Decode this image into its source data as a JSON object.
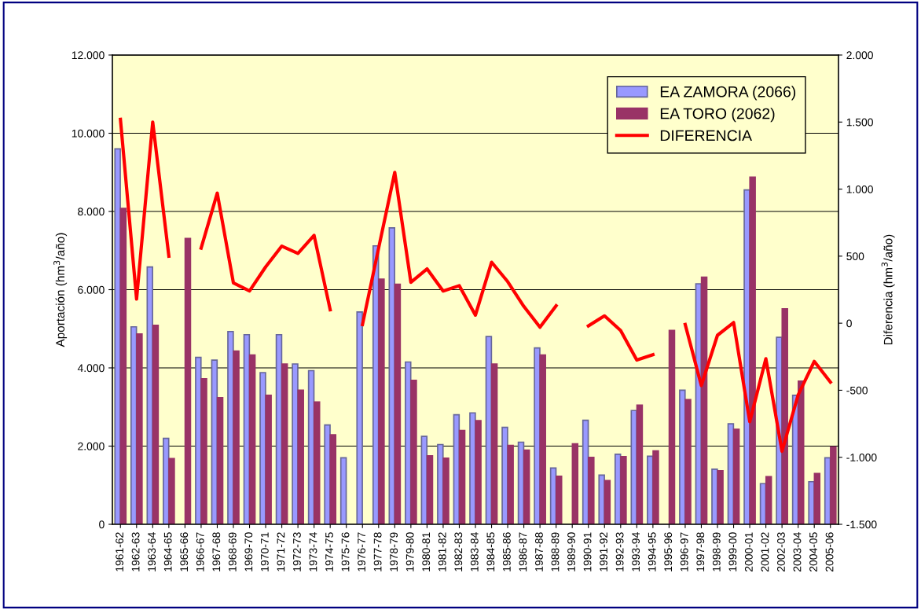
{
  "chart_data": {
    "type": "bar",
    "categories": [
      "1961-62",
      "1962-63",
      "1963-64",
      "1964-65",
      "1965-66",
      "1966-67",
      "1967-68",
      "1968-69",
      "1969-70",
      "1970-71",
      "1971-72",
      "1972-73",
      "1973-74",
      "1974-75",
      "1975-76",
      "1976-77",
      "1977-78",
      "1978-79",
      "1979-80",
      "1980-81",
      "1981-82",
      "1982-83",
      "1983-84",
      "1984-85",
      "1985-86",
      "1986-87",
      "1987-88",
      "1988-89",
      "1989-90",
      "1990-91",
      "1991-92",
      "1992-93",
      "1993-94",
      "1994-95",
      "1995-96",
      "1996-97",
      "1997-98",
      "1998-99",
      "1999-00",
      "2000-01",
      "2001-02",
      "2002-03",
      "2003-04",
      "2004-05",
      "2005-06"
    ],
    "series": [
      {
        "name": "EA ZAMORA (2066)",
        "color": "#9999ff",
        "values": [
          9600,
          5050,
          6580,
          2200,
          null,
          4270,
          4200,
          4930,
          4850,
          3880,
          4850,
          4100,
          3930,
          2540,
          1700,
          5430,
          7120,
          7580,
          4150,
          2250,
          2040,
          2800,
          2850,
          4800,
          2480,
          2100,
          4510,
          1440,
          null,
          2660,
          1260,
          1790,
          2910,
          1740,
          null,
          3430,
          6150,
          1410,
          2570,
          8550,
          1040,
          4780,
          3300,
          1090,
          1700
        ]
      },
      {
        "name": "EA TORO (2062)",
        "color": "#993366",
        "values": [
          8080,
          4870,
          5090,
          1680,
          7310,
          3720,
          3240,
          4430,
          4330,
          3300,
          4100,
          3430,
          3130,
          2290,
          null,
          null,
          6270,
          6140,
          3680,
          1750,
          1690,
          2400,
          2650,
          4100,
          2020,
          1900,
          4330,
          1230,
          2060,
          1710,
          1120,
          1730,
          3050,
          1880,
          4960,
          3190,
          6320,
          1370,
          2430,
          8880,
          1220,
          5510,
          3660,
          1300,
          1980
        ]
      },
      {
        "name": "DIFERENCIA",
        "type": "line",
        "axis": "y2",
        "color": "#ff0000",
        "values": [
          1520,
          180,
          1500,
          500,
          null,
          560,
          970,
          300,
          240,
          420,
          575,
          520,
          655,
          100,
          null,
          -10,
          560,
          1125,
          305,
          405,
          240,
          280,
          60,
          455,
          310,
          125,
          -30,
          130,
          null,
          -20,
          55,
          -55,
          -275,
          -235,
          null,
          -10,
          -465,
          -90,
          5,
          -735,
          -265,
          -955,
          -535,
          -285,
          -440
        ]
      }
    ],
    "ylabel": "Aportación (hm$^{3}$/año)",
    "y2label": "Diferencia (hm$^{3}$/año)",
    "ylim": [
      0,
      12000
    ],
    "yticks": [
      {
        "value": 0,
        "label": "0"
      },
      {
        "value": 2000,
        "label": "2.000"
      },
      {
        "value": 4000,
        "label": "4.000"
      },
      {
        "value": 6000,
        "label": "6.000"
      },
      {
        "value": 8000,
        "label": "8.000"
      },
      {
        "value": 10000,
        "label": "10.000"
      },
      {
        "value": 12000,
        "label": "12.000"
      }
    ],
    "y2lim": [
      -1500,
      2000
    ],
    "y2ticks": [
      {
        "value": -1500,
        "label": "-1.500"
      },
      {
        "value": -1000,
        "label": "-1.000"
      },
      {
        "value": -500,
        "label": "-500"
      },
      0,
      500,
      {
        "value": 1000,
        "label": "1.000"
      },
      {
        "value": 1500,
        "label": "1.500"
      },
      {
        "value": 2000,
        "label": "2.000"
      }
    ],
    "grid": "y",
    "legend": "top right"
  }
}
